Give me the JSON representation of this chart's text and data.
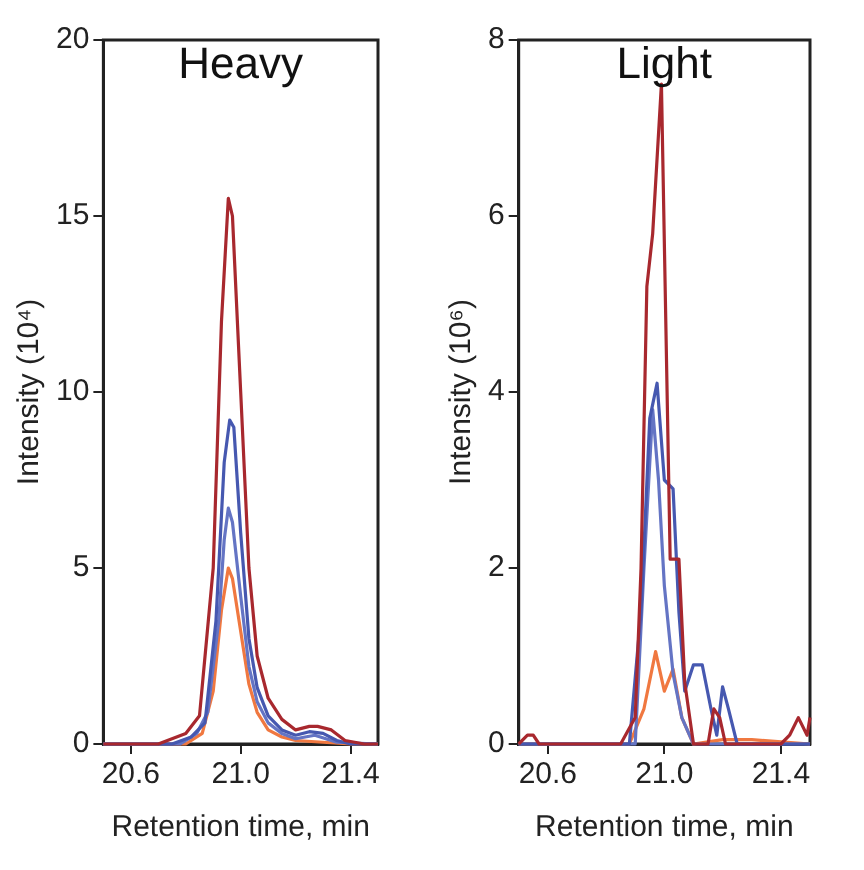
{
  "chart_data": [
    {
      "type": "line",
      "annotations": [
        "Heavy"
      ],
      "xlabel": "Retention time, min",
      "ylabel": "Intensity (10⁴)",
      "xlim": [
        20.5,
        21.5
      ],
      "xticks": [
        {
          "value": 20.6,
          "label": "20.6"
        },
        {
          "value": 21,
          "label": "21.0"
        },
        {
          "value": 21.4,
          "label": "21.4"
        }
      ],
      "ylim": [
        0,
        20
      ],
      "yticks": [
        0,
        5,
        10,
        15,
        20
      ],
      "grid": false,
      "legend": false,
      "marker": "none",
      "line_style": "solid",
      "series": [
        {
          "color": "#a8282e",
          "x": [
            20.5,
            20.7,
            20.8,
            20.85,
            20.9,
            20.93,
            20.955,
            20.97,
            21.0,
            21.03,
            21.06,
            21.1,
            21.15,
            21.2,
            21.25,
            21.28,
            21.33,
            21.38,
            21.45,
            21.5
          ],
          "values": [
            0,
            0,
            0.3,
            0.8,
            5,
            12,
            15.5,
            15,
            10,
            5,
            2.5,
            1.3,
            0.7,
            0.4,
            0.5,
            0.5,
            0.4,
            0.1,
            0,
            0
          ]
        },
        {
          "color": "#4658b0",
          "x": [
            20.5,
            20.75,
            20.82,
            20.87,
            20.91,
            20.94,
            20.96,
            20.975,
            21.0,
            21.03,
            21.06,
            21.1,
            21.15,
            21.2,
            21.25,
            21.3,
            21.35,
            21.4,
            21.5
          ],
          "values": [
            0,
            0,
            0.2,
            0.6,
            3.5,
            8,
            9.2,
            9,
            6,
            3,
            1.6,
            0.8,
            0.4,
            0.25,
            0.35,
            0.3,
            0.1,
            0,
            0
          ]
        },
        {
          "color": "#6474c4",
          "x": [
            20.5,
            20.78,
            20.84,
            20.88,
            20.92,
            20.94,
            20.955,
            20.97,
            21.0,
            21.03,
            21.06,
            21.1,
            21.15,
            21.2,
            21.27,
            21.35,
            21.5
          ],
          "values": [
            0,
            0,
            0.3,
            0.9,
            3.5,
            5.8,
            6.7,
            6.3,
            4.2,
            2.2,
            1.2,
            0.6,
            0.3,
            0.15,
            0.25,
            0.05,
            0
          ]
        },
        {
          "color": "#f07840",
          "x": [
            20.5,
            20.8,
            20.86,
            20.9,
            20.93,
            20.955,
            20.97,
            21.0,
            21.03,
            21.06,
            21.1,
            21.15,
            21.2,
            21.3,
            21.4,
            21.5
          ],
          "values": [
            0,
            0,
            0.3,
            1.5,
            3.8,
            5,
            4.7,
            3.2,
            1.7,
            0.9,
            0.4,
            0.2,
            0.1,
            0.05,
            0,
            0
          ]
        }
      ]
    },
    {
      "type": "line",
      "annotations": [
        "Light"
      ],
      "xlabel": "Retention time, min",
      "ylabel": "Intensity (10⁶)",
      "xlim": [
        20.5,
        21.5
      ],
      "xticks": [
        {
          "value": 20.6,
          "label": "20.6"
        },
        {
          "value": 21,
          "label": "21.0"
        },
        {
          "value": 21.4,
          "label": "21.4"
        }
      ],
      "ylim": [
        0,
        8
      ],
      "yticks": [
        0,
        2,
        4,
        6,
        8
      ],
      "grid": false,
      "legend": false,
      "marker": "none",
      "line_style": "solid",
      "series": [
        {
          "color": "#a8282e",
          "x": [
            20.5,
            20.53,
            20.55,
            20.57,
            20.85,
            20.9,
            20.92,
            20.94,
            20.96,
            20.99,
            21.02,
            21.05,
            21.07,
            21.1,
            21.15,
            21.17,
            21.19,
            21.21,
            21.4,
            21.43,
            21.46,
            21.49,
            21.5
          ],
          "values": [
            0,
            0.1,
            0.1,
            0,
            0,
            0.3,
            2,
            5.2,
            5.8,
            7.5,
            2.1,
            2.1,
            0.7,
            0,
            0,
            0.4,
            0.3,
            0,
            0,
            0.1,
            0.3,
            0.1,
            0.3
          ]
        },
        {
          "color": "#4658b0",
          "x": [
            20.5,
            20.88,
            20.92,
            20.95,
            20.975,
            21.0,
            21.03,
            21.05,
            21.07,
            21.1,
            21.13,
            21.16,
            21.18,
            21.2,
            21.22,
            21.25,
            21.5
          ],
          "values": [
            0,
            0,
            1.5,
            3.7,
            4.1,
            3,
            2.9,
            1.5,
            0.6,
            0.9,
            0.9,
            0.4,
            0.1,
            0.65,
            0.4,
            0,
            0
          ]
        },
        {
          "color": "#6474c4",
          "x": [
            20.5,
            20.9,
            20.93,
            20.96,
            20.98,
            21.0,
            21.03,
            21.06,
            21.1,
            21.5
          ],
          "values": [
            0,
            0,
            2,
            3.8,
            3,
            1.8,
            0.8,
            0.3,
            0,
            0
          ]
        },
        {
          "color": "#f07840",
          "x": [
            20.5,
            20.88,
            20.93,
            20.97,
            21.0,
            21.03,
            21.06,
            21.1,
            21.2,
            21.3,
            21.5
          ],
          "values": [
            0,
            0,
            0.4,
            1.05,
            0.6,
            0.85,
            0.3,
            0,
            0.05,
            0.05,
            0
          ]
        }
      ]
    }
  ]
}
